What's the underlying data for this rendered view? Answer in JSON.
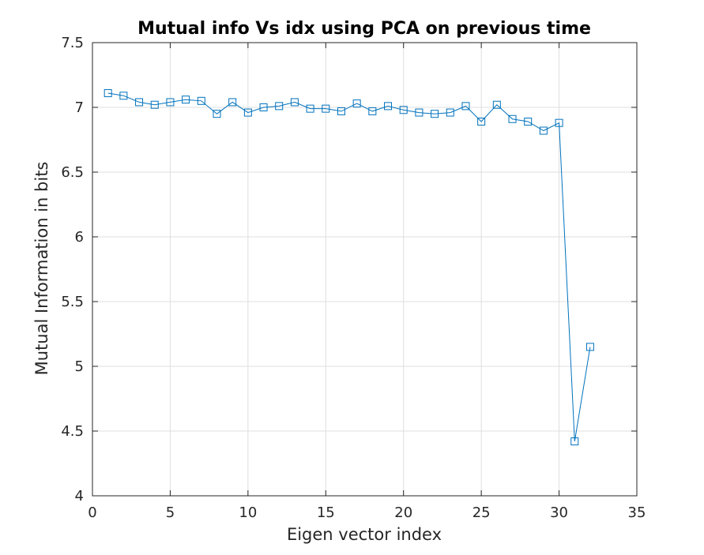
{
  "chart_data": {
    "type": "line",
    "title": "Mutual info Vs idx using PCA on previous time",
    "xlabel": "Eigen vector index",
    "ylabel": "Mutual Information in bits",
    "xlim": [
      0,
      35
    ],
    "ylim": [
      4,
      7.5
    ],
    "xticks": [
      0,
      5,
      10,
      15,
      20,
      25,
      30,
      35
    ],
    "yticks": [
      4,
      4.5,
      5,
      5.5,
      6,
      6.5,
      7,
      7.5
    ],
    "xtick_labels": [
      "0",
      "5",
      "10",
      "15",
      "20",
      "25",
      "30",
      "35"
    ],
    "ytick_labels": [
      "4",
      "4.5",
      "5",
      "5.5",
      "6",
      "6.5",
      "7",
      "7.5"
    ],
    "grid": true,
    "marker": "square",
    "color": "#0072bd",
    "series": [
      {
        "x": [
          1,
          2,
          3,
          4,
          5,
          6,
          7,
          8,
          9,
          10,
          11,
          12,
          13,
          14,
          15,
          16,
          17,
          18,
          19,
          20,
          21,
          22,
          23,
          24,
          25,
          26,
          27,
          28,
          29,
          30,
          31,
          32
        ],
        "values": [
          7.11,
          7.09,
          7.04,
          7.02,
          7.04,
          7.06,
          7.05,
          6.95,
          7.04,
          6.96,
          7.0,
          7.01,
          7.04,
          6.99,
          6.99,
          6.97,
          7.03,
          6.97,
          7.01,
          6.98,
          6.96,
          6.95,
          6.96,
          7.01,
          6.89,
          7.02,
          6.91,
          6.89,
          6.82,
          6.88,
          4.42,
          5.15
        ]
      }
    ]
  }
}
